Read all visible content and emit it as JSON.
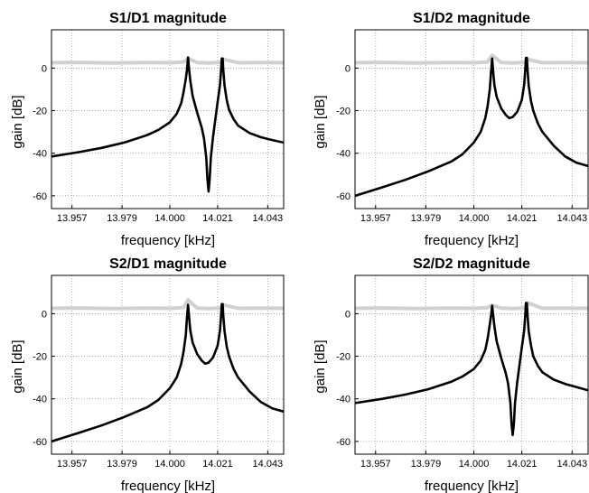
{
  "chart_data": [
    {
      "type": "line",
      "title": "S1/D1 magnitude",
      "xlabel": "frequency [kHz]",
      "ylabel": "gain [dB]",
      "xlim": [
        13.948,
        14.05
      ],
      "ylim": [
        -66,
        18
      ],
      "xticks": [
        "13.957",
        "13.979",
        "14.000",
        "14.021",
        "14.043"
      ],
      "yticks": [
        "0",
        "-20",
        "-40",
        "-60"
      ],
      "grid": true,
      "series": [
        {
          "color": "#d0d0d0",
          "x": [
            13.948,
            13.96,
            13.975,
            13.99,
            14.0,
            14.006,
            14.008,
            14.012,
            14.017,
            14.022,
            14.024,
            14.03,
            14.04,
            14.05
          ],
          "values": [
            2.5,
            2.7,
            2.4,
            2.6,
            2.5,
            2.8,
            4.5,
            2.6,
            2.4,
            2.7,
            4.0,
            2.5,
            2.6,
            2.5
          ]
        },
        {
          "color": "#000000",
          "x": [
            13.948,
            13.96,
            13.97,
            13.98,
            13.99,
            13.995,
            14.0,
            14.003,
            14.005,
            14.006,
            14.007,
            14.0075,
            14.008,
            14.0085,
            14.009,
            14.01,
            14.012,
            14.014,
            14.015,
            14.016,
            14.0165,
            14.017,
            14.0175,
            14.018,
            14.019,
            14.02,
            14.021,
            14.022,
            14.0225,
            14.0228,
            14.0232,
            14.0235,
            14.024,
            14.025,
            14.026,
            14.028,
            14.03,
            14.035,
            14.04,
            14.045,
            14.05
          ],
          "values": [
            -41.5,
            -39.5,
            -37.5,
            -35,
            -31.5,
            -29,
            -25.5,
            -21.5,
            -16.5,
            -11.5,
            -5,
            -1,
            5,
            -1,
            -6,
            -13,
            -21,
            -28,
            -33,
            -42,
            -52,
            -58,
            -52,
            -42,
            -32,
            -24,
            -16,
            -8,
            -1,
            4.5,
            4.5,
            -1,
            -8,
            -15,
            -19.5,
            -24,
            -27,
            -30.5,
            -32.5,
            -33.8,
            -35
          ]
        }
      ]
    },
    {
      "type": "line",
      "title": "S1/D2 magnitude",
      "xlabel": "frequency [kHz]",
      "ylabel": "gain [dB]",
      "xlim": [
        13.948,
        14.05
      ],
      "ylim": [
        -66,
        18
      ],
      "xticks": [
        "13.957",
        "13.979",
        "14.000",
        "14.021",
        "14.043"
      ],
      "yticks": [
        "0",
        "-20",
        "-40",
        "-60"
      ],
      "grid": true,
      "series": [
        {
          "color": "#d0d0d0",
          "x": [
            13.948,
            13.96,
            13.975,
            13.99,
            14.0,
            14.006,
            14.008,
            14.012,
            14.017,
            14.022,
            14.024,
            14.03,
            14.04,
            14.05
          ],
          "values": [
            2.5,
            2.7,
            2.4,
            2.6,
            2.5,
            2.8,
            6.0,
            2.6,
            2.4,
            2.7,
            4.0,
            2.5,
            2.6,
            2.5
          ]
        },
        {
          "color": "#000000",
          "x": [
            13.948,
            13.96,
            13.97,
            13.98,
            13.99,
            13.995,
            14.0,
            14.003,
            14.005,
            14.006,
            14.007,
            14.0075,
            14.008,
            14.0085,
            14.009,
            14.01,
            14.012,
            14.014,
            14.0155,
            14.017,
            14.019,
            14.021,
            14.022,
            14.0225,
            14.0228,
            14.0232,
            14.0235,
            14.024,
            14.025,
            14.026,
            14.028,
            14.03,
            14.035,
            14.04,
            14.045,
            14.05
          ],
          "values": [
            -60,
            -56,
            -52.5,
            -48.5,
            -44,
            -40.5,
            -35,
            -30,
            -23.5,
            -18,
            -10,
            -2,
            4.5,
            -2,
            -8,
            -13.5,
            -19,
            -22,
            -23.5,
            -23,
            -20.5,
            -15,
            -8,
            -1,
            4.8,
            4.8,
            -1,
            -8,
            -15.5,
            -20,
            -26,
            -30,
            -36.5,
            -41.5,
            -44.5,
            -46
          ]
        }
      ]
    },
    {
      "type": "line",
      "title": "S2/D1 magnitude",
      "xlabel": "frequency [kHz]",
      "ylabel": "gain [dB]",
      "xlim": [
        13.948,
        14.05
      ],
      "ylim": [
        -66,
        18
      ],
      "xticks": [
        "13.957",
        "13.979",
        "14.000",
        "14.021",
        "14.043"
      ],
      "yticks": [
        "0",
        "-20",
        "-40",
        "-60"
      ],
      "grid": true,
      "series": [
        {
          "color": "#d0d0d0",
          "x": [
            13.948,
            13.96,
            13.975,
            13.99,
            14.0,
            14.006,
            14.008,
            14.012,
            14.017,
            14.022,
            14.024,
            14.03,
            14.04,
            14.05
          ],
          "values": [
            2.5,
            2.7,
            2.4,
            2.6,
            2.5,
            2.8,
            6.5,
            2.6,
            2.4,
            2.7,
            4.0,
            2.5,
            2.6,
            2.5
          ]
        },
        {
          "color": "#000000",
          "x": [
            13.948,
            13.96,
            13.97,
            13.98,
            13.99,
            13.995,
            14.0,
            14.003,
            14.005,
            14.006,
            14.007,
            14.0075,
            14.008,
            14.0085,
            14.009,
            14.01,
            14.012,
            14.014,
            14.0155,
            14.017,
            14.019,
            14.021,
            14.022,
            14.0225,
            14.0228,
            14.0232,
            14.0235,
            14.024,
            14.025,
            14.026,
            14.028,
            14.03,
            14.035,
            14.04,
            14.045,
            14.05
          ],
          "values": [
            -60,
            -56,
            -52.5,
            -48.5,
            -44,
            -40.5,
            -35,
            -30,
            -23.5,
            -18,
            -10,
            -2,
            4.2,
            -2,
            -8,
            -13.5,
            -19,
            -22,
            -23.5,
            -23,
            -20.5,
            -15,
            -8,
            -1,
            4.5,
            4.5,
            -1,
            -8,
            -15.5,
            -20,
            -26,
            -30,
            -36.5,
            -41.5,
            -44.5,
            -46
          ]
        }
      ]
    },
    {
      "type": "line",
      "title": "S2/D2 magnitude",
      "xlabel": "frequency [kHz]",
      "ylabel": "gain [dB]",
      "xlim": [
        13.948,
        14.05
      ],
      "ylim": [
        -66,
        18
      ],
      "xticks": [
        "13.957",
        "13.979",
        "14.000",
        "14.021",
        "14.043"
      ],
      "yticks": [
        "0",
        "-20",
        "-40",
        "-60"
      ],
      "grid": true,
      "series": [
        {
          "color": "#d0d0d0",
          "x": [
            13.948,
            13.96,
            13.975,
            13.99,
            14.0,
            14.006,
            14.008,
            14.012,
            14.017,
            14.022,
            14.024,
            14.03,
            14.04,
            14.05
          ],
          "values": [
            2.5,
            2.7,
            2.4,
            2.6,
            2.5,
            2.8,
            4.0,
            2.6,
            2.4,
            2.7,
            5.0,
            2.5,
            2.6,
            2.5
          ]
        },
        {
          "color": "#000000",
          "x": [
            13.948,
            13.96,
            13.97,
            13.98,
            13.99,
            13.995,
            14.0,
            14.003,
            14.005,
            14.006,
            14.007,
            14.0075,
            14.008,
            14.0085,
            14.009,
            14.01,
            14.012,
            14.014,
            14.015,
            14.016,
            14.0165,
            14.017,
            14.0175,
            14.018,
            14.019,
            14.02,
            14.021,
            14.022,
            14.0225,
            14.0228,
            14.0232,
            14.0235,
            14.024,
            14.025,
            14.026,
            14.028,
            14.03,
            14.035,
            14.04,
            14.045,
            14.05
          ],
          "values": [
            -42,
            -40,
            -38,
            -35.5,
            -32,
            -29.5,
            -26,
            -22,
            -17,
            -12,
            -5,
            -1,
            3.8,
            -1,
            -6,
            -13,
            -21,
            -28,
            -33,
            -42,
            -52,
            -57,
            -52,
            -42,
            -32,
            -24,
            -16,
            -8,
            -1,
            5,
            5,
            -1,
            -8,
            -15,
            -20,
            -24.5,
            -27.5,
            -31,
            -33,
            -34.5,
            -36
          ]
        }
      ]
    }
  ]
}
